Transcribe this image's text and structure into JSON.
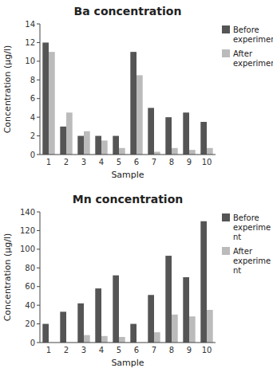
{
  "chart_data": [
    {
      "type": "bar",
      "title": "Ba concentration",
      "x_label": "Sample",
      "y_label": "Concentration (μg/l)",
      "categories": [
        "1",
        "2",
        "3",
        "4",
        "5",
        "6",
        "7",
        "8",
        "9",
        "10"
      ],
      "series": [
        {
          "name": "Before\nexperiment",
          "color": "#555555",
          "values": [
            12,
            3,
            2,
            2,
            2,
            11,
            5,
            4,
            4.5,
            3.5
          ]
        },
        {
          "name": "After\nexperiment",
          "color": "#bbbbbb",
          "values": [
            11,
            4.5,
            2.5,
            1.5,
            0.7,
            8.5,
            0.3,
            0.7,
            0.5,
            0.7
          ]
        }
      ],
      "ylim": [
        0,
        14
      ],
      "yticks": [
        0,
        2,
        4,
        6,
        8,
        10,
        12,
        14
      ],
      "legend": "upper right"
    },
    {
      "type": "bar",
      "title": "Mn concentration",
      "x_label": "Sample",
      "y_label": "Concentration (μg/l)",
      "categories": [
        "1",
        "2",
        "3",
        "4",
        "5",
        "6",
        "7",
        "8",
        "9",
        "10"
      ],
      "series": [
        {
          "name": "Before\nexperime\nnt",
          "color": "#555555",
          "values": [
            20,
            33,
            42,
            58,
            72,
            20,
            51,
            93,
            70,
            130
          ]
        },
        {
          "name": "After\nexperime\nnt",
          "color": "#bbbbbb",
          "values": [
            0,
            0,
            8,
            7,
            6,
            0,
            11,
            30,
            28,
            35
          ]
        }
      ],
      "ylim": [
        0,
        140
      ],
      "yticks": [
        0,
        20,
        40,
        60,
        80,
        100,
        120,
        140
      ],
      "legend": "upper right"
    }
  ]
}
